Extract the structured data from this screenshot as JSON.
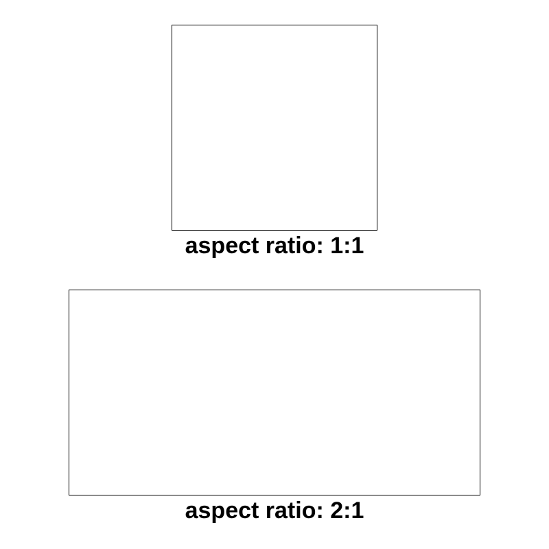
{
  "figures": [
    {
      "caption": "aspect ratio: 1:1",
      "aspect_ratio": "1:1"
    },
    {
      "caption": "aspect ratio: 2:1",
      "aspect_ratio": "2:1"
    }
  ],
  "colors": {
    "background": "#ffffff",
    "border": "#000000",
    "text": "#000000"
  }
}
